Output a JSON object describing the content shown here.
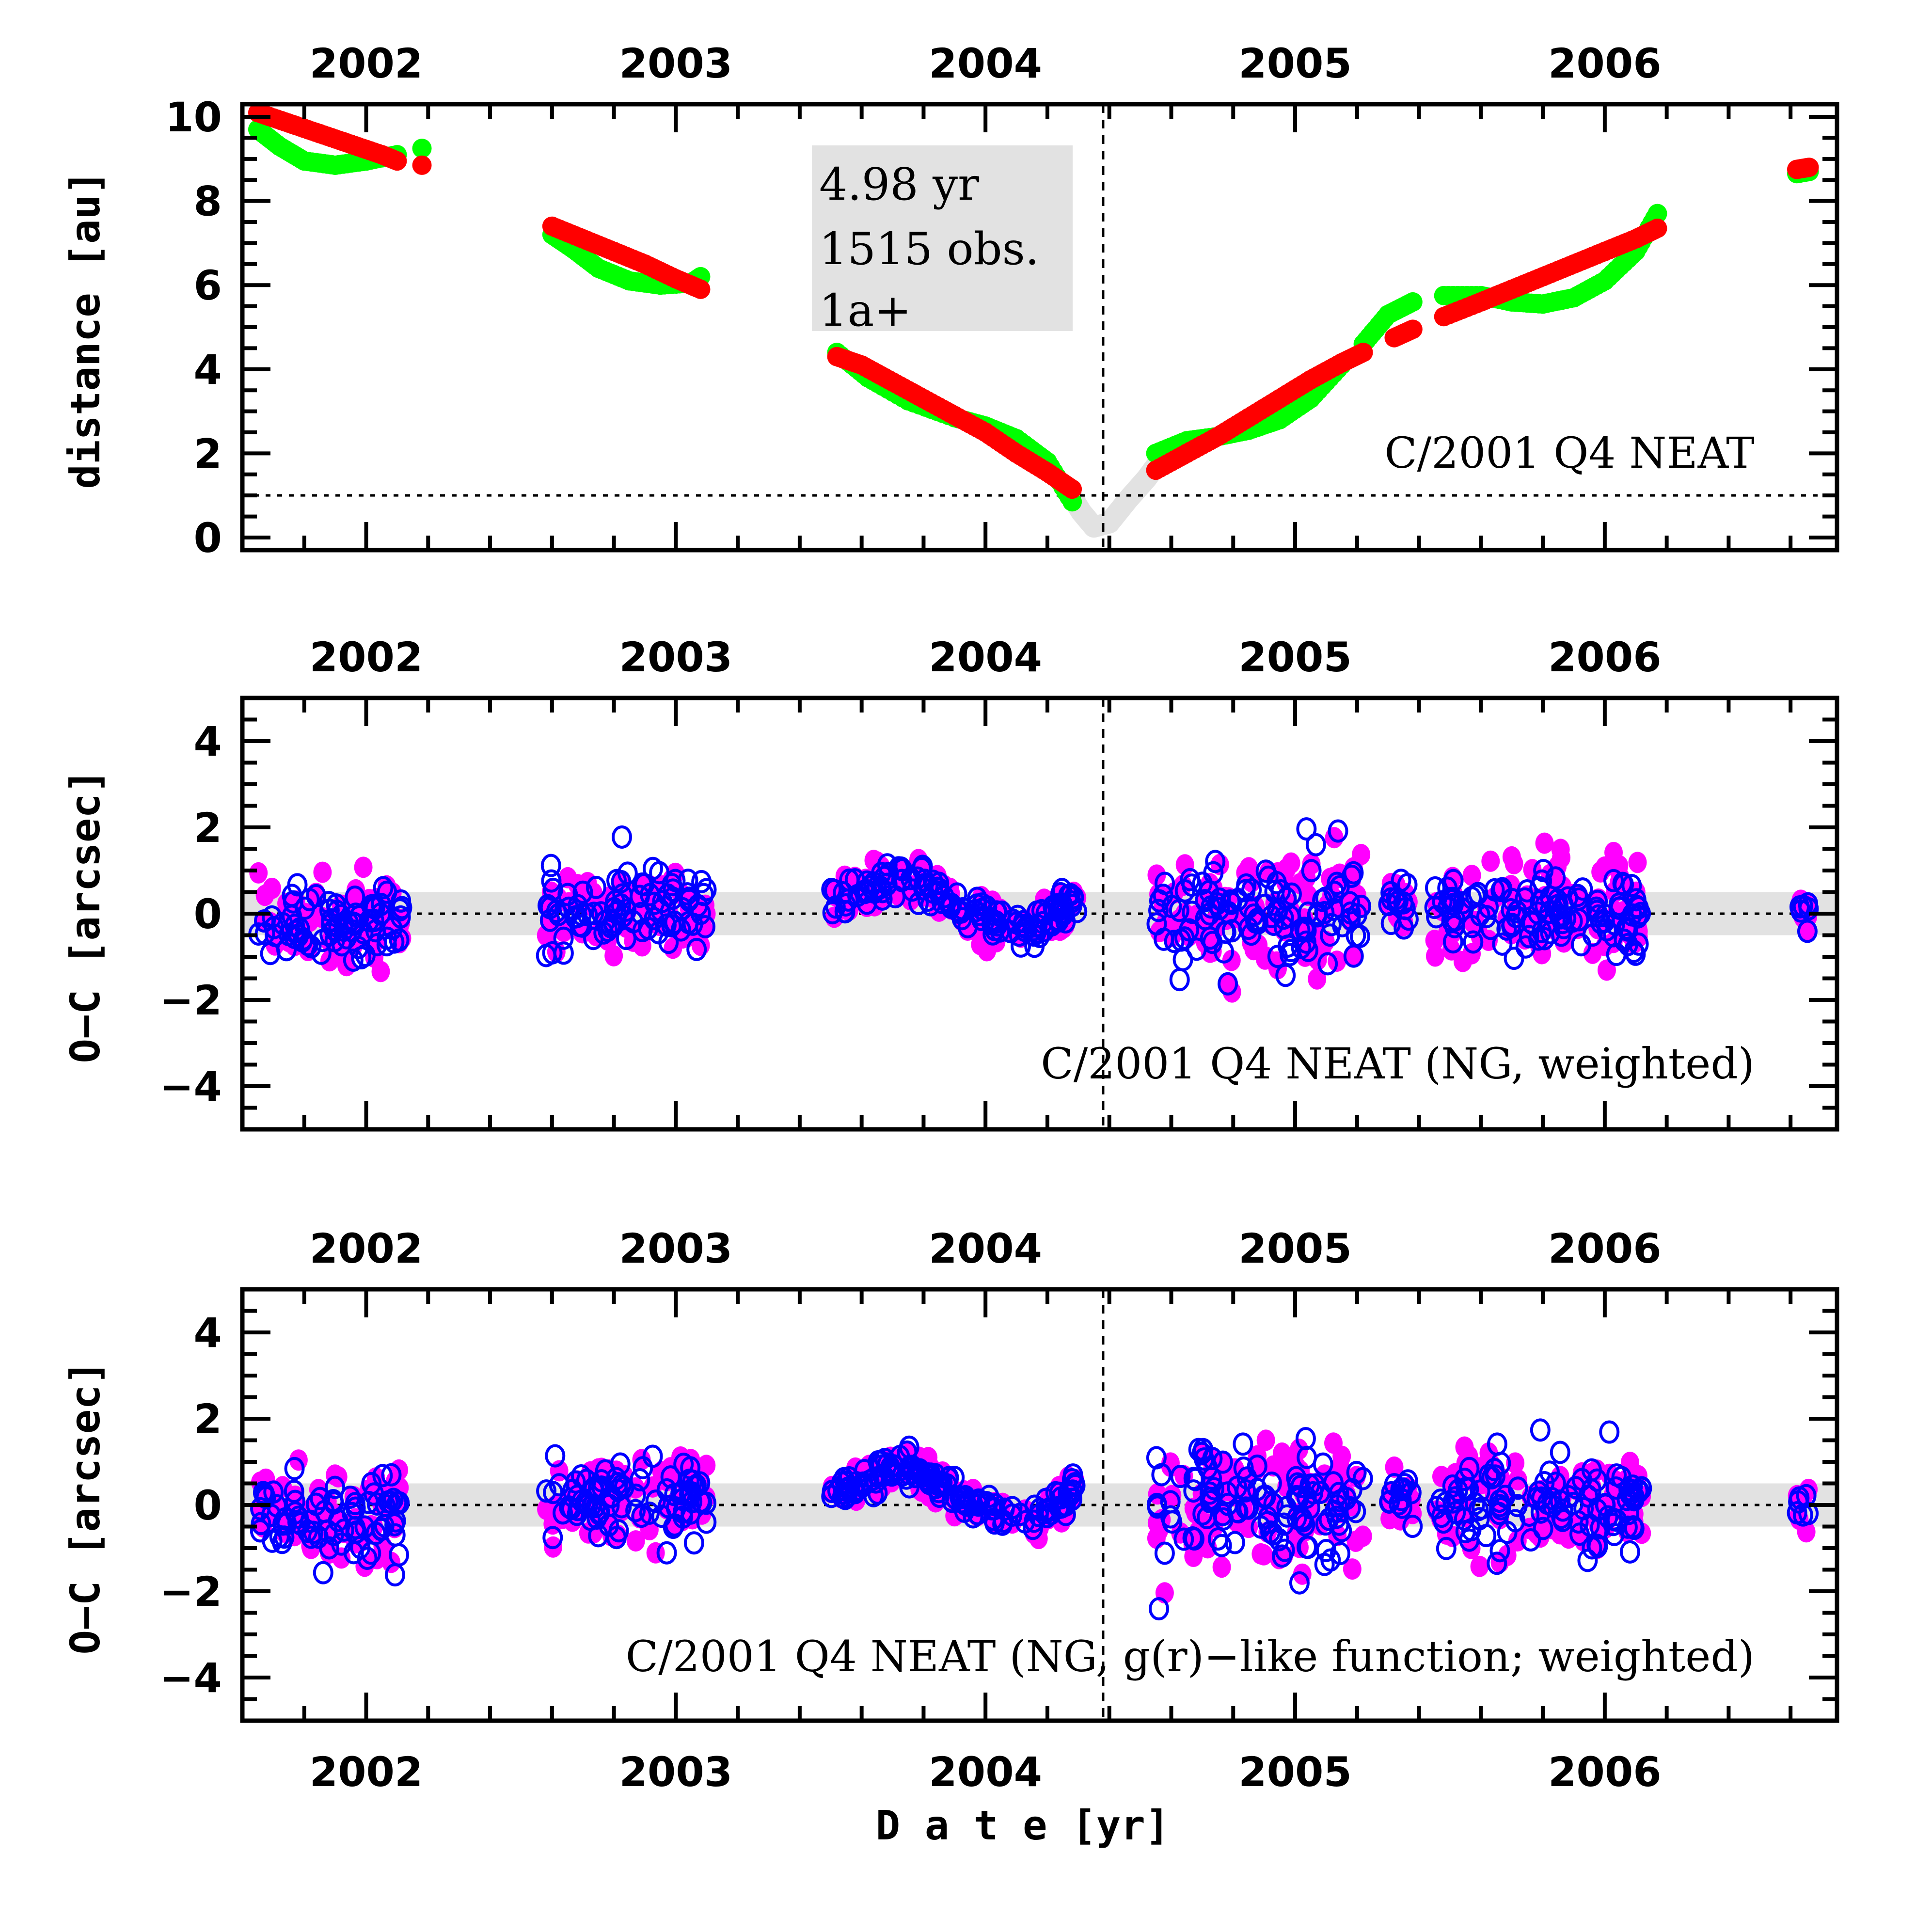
{
  "chart_data": [
    {
      "type": "scatter",
      "panel": "distance",
      "title": "",
      "xlabel": "",
      "ylabel": "distance [au]",
      "xlim": [
        2001.6,
        2006.75
      ],
      "ylim": [
        -0.3,
        10.3
      ],
      "x_tick_labels_top": [
        "2002",
        "2003",
        "2004",
        "2005",
        "2006"
      ],
      "x_ticks": [
        2002,
        2003,
        2004,
        2005,
        2006
      ],
      "y_ticks": [
        0,
        2,
        4,
        6,
        8,
        10
      ],
      "y_tick_labels": [
        "0",
        "2",
        "4",
        "6",
        "8",
        "10"
      ],
      "reference_hline": 1.0,
      "perihelion_vline": 2004.38,
      "annotation": "C/2001 Q4 NEAT",
      "info_box": [
        "4.98 yr",
        "1515 obs.",
        "1a+"
      ],
      "colors": {
        "heliocentric": "#ff0000",
        "geocentric": "#00ff00",
        "gap": "#e2e2e2"
      },
      "series": [
        {
          "name": "heliocentric distance (observed arcs)",
          "color": "#ff0000",
          "arcs": [
            {
              "x": [
                2001.65,
                2001.75,
                2001.85,
                2001.95,
                2002.05,
                2002.1
              ],
              "y": [
                10.1,
                9.85,
                9.6,
                9.35,
                9.1,
                8.95
              ]
            },
            {
              "x": [
                2002.18
              ],
              "y": [
                8.85
              ]
            },
            {
              "x": [
                2002.6,
                2002.7,
                2002.8,
                2002.9,
                2003.0,
                2003.08
              ],
              "y": [
                7.4,
                7.1,
                6.8,
                6.5,
                6.15,
                5.9
              ]
            },
            {
              "x": [
                2003.52,
                2003.6,
                2003.7,
                2003.8,
                2003.9,
                2004.0,
                2004.1,
                2004.2,
                2004.28
              ],
              "y": [
                4.3,
                4.1,
                3.7,
                3.3,
                2.9,
                2.5,
                2.0,
                1.55,
                1.15
              ]
            },
            {
              "x": [
                2004.55,
                2004.65,
                2004.75,
                2004.85,
                2004.95,
                2005.05,
                2005.15,
                2005.22
              ],
              "y": [
                1.6,
                2.0,
                2.4,
                2.85,
                3.3,
                3.75,
                4.15,
                4.4
              ]
            },
            {
              "x": [
                2005.32,
                2005.38
              ],
              "y": [
                4.75,
                4.95
              ]
            },
            {
              "x": [
                2005.48,
                2005.6,
                2005.7,
                2005.8,
                2005.9,
                2006.0,
                2006.1,
                2006.17
              ],
              "y": [
                5.25,
                5.6,
                5.9,
                6.2,
                6.5,
                6.8,
                7.1,
                7.35
              ]
            },
            {
              "x": [
                2006.62,
                2006.66
              ],
              "y": [
                8.75,
                8.8
              ]
            }
          ]
        },
        {
          "name": "geocentric distance (observed arcs)",
          "color": "#00ff00",
          "arcs": [
            {
              "x": [
                2001.65,
                2001.72,
                2001.8,
                2001.9,
                2002.0,
                2002.1
              ],
              "y": [
                9.7,
                9.3,
                8.95,
                8.85,
                8.95,
                9.1
              ]
            },
            {
              "x": [
                2002.18
              ],
              "y": [
                9.25
              ]
            },
            {
              "x": [
                2002.6,
                2002.67,
                2002.75,
                2002.85,
                2002.95,
                2003.05,
                2003.08
              ],
              "y": [
                7.2,
                6.85,
                6.4,
                6.1,
                6.0,
                6.05,
                6.2
              ]
            },
            {
              "x": [
                2003.52,
                2003.62,
                2003.75,
                2003.9,
                2004.0,
                2004.1,
                2004.2,
                2004.28
              ],
              "y": [
                4.4,
                3.8,
                3.25,
                2.85,
                2.65,
                2.35,
                1.8,
                0.85
              ]
            },
            {
              "x": [
                2004.55,
                2004.65,
                2004.75,
                2004.85,
                2004.95,
                2005.05,
                2005.15
              ],
              "y": [
                2.0,
                2.3,
                2.4,
                2.55,
                2.8,
                3.3,
                4.1
              ]
            },
            {
              "x": [
                2005.22,
                2005.3,
                2005.38
              ],
              "y": [
                4.6,
                5.3,
                5.6
              ]
            },
            {
              "x": [
                2005.48,
                2005.6,
                2005.7,
                2005.8,
                2005.9,
                2006.0,
                2006.1,
                2006.17
              ],
              "y": [
                5.75,
                5.75,
                5.6,
                5.55,
                5.7,
                6.1,
                6.8,
                7.7
              ]
            },
            {
              "x": [
                2006.62,
                2006.66
              ],
              "y": [
                8.65,
                8.7
              ]
            }
          ]
        }
      ]
    },
    {
      "type": "scatter",
      "panel": "residuals-ng-weighted",
      "xlabel": "",
      "ylabel": "O−C [arcsec]",
      "xlim": [
        2001.6,
        2006.75
      ],
      "ylim": [
        -5,
        5
      ],
      "x_tick_labels_top": [
        "2002",
        "2003",
        "2004",
        "2005",
        "2006"
      ],
      "y_ticks": [
        -4,
        -2,
        0,
        2,
        4
      ],
      "y_tick_labels": [
        "−4",
        "−2",
        "0",
        "2",
        "4"
      ],
      "band": [
        -0.5,
        0.5
      ],
      "perihelion_vline": 2004.38,
      "annotation": "C/2001 Q4 NEAT (NG, weighted)",
      "series": [
        {
          "name": "RA residuals",
          "marker": "filled-circle",
          "color": "#ff00ff"
        },
        {
          "name": "Dec residuals",
          "marker": "open-circle",
          "color": "#0000ff"
        }
      ],
      "clusters": [
        {
          "x_range": [
            2001.65,
            2002.12
          ],
          "mean": -0.2,
          "spread": 1.2
        },
        {
          "x_range": [
            2002.58,
            2003.1
          ],
          "mean": 0.1,
          "spread": 1.1
        },
        {
          "x_range": [
            2003.5,
            2004.3
          ],
          "trend": [
            [
              2003.5,
              0.3
            ],
            [
              2003.75,
              0.9
            ],
            [
              2003.95,
              0.0
            ],
            [
              2004.15,
              -0.4
            ],
            [
              2004.3,
              0.4
            ]
          ],
          "spread": 0.5
        },
        {
          "x_range": [
            2004.55,
            2005.22
          ],
          "mean": 0.0,
          "spread": 1.6
        },
        {
          "x_range": [
            2005.3,
            2005.38
          ],
          "mean": 0.2,
          "spread": 0.8
        },
        {
          "x_range": [
            2005.45,
            2006.12
          ],
          "mean": 0.0,
          "spread": 1.3
        },
        {
          "x_range": [
            2006.62,
            2006.66
          ],
          "mean": 0.1,
          "spread": 0.6
        }
      ]
    },
    {
      "type": "scatter",
      "panel": "residuals-ng-gr-like-weighted",
      "xlabel": "D a t e [yr]",
      "ylabel": "O−C [arcsec]",
      "xlim": [
        2001.6,
        2006.75
      ],
      "ylim": [
        -5,
        5
      ],
      "x_tick_labels_top": [
        "2002",
        "2003",
        "2004",
        "2005",
        "2006"
      ],
      "x_tick_labels_bottom": [
        "2002",
        "2003",
        "2004",
        "2005",
        "2006"
      ],
      "y_ticks": [
        -4,
        -2,
        0,
        2,
        4
      ],
      "y_tick_labels": [
        "−4",
        "−2",
        "0",
        "2",
        "4"
      ],
      "band": [
        -0.5,
        0.5
      ],
      "perihelion_vline": 2004.38,
      "annotation": "C/2001 Q4 NEAT (NG, g(r)−like function; weighted)",
      "series": [
        {
          "name": "RA residuals",
          "marker": "filled-circle",
          "color": "#ff00ff"
        },
        {
          "name": "Dec residuals",
          "marker": "open-circle",
          "color": "#0000ff"
        }
      ],
      "clusters": [
        {
          "x_range": [
            2001.65,
            2002.12
          ],
          "mean": -0.2,
          "spread": 1.2
        },
        {
          "x_range": [
            2002.58,
            2003.1
          ],
          "mean": 0.1,
          "spread": 1.1
        },
        {
          "x_range": [
            2003.5,
            2004.3
          ],
          "trend": [
            [
              2003.5,
              0.3
            ],
            [
              2003.75,
              0.9
            ],
            [
              2003.95,
              0.0
            ],
            [
              2004.15,
              -0.4
            ],
            [
              2004.3,
              0.5
            ]
          ],
          "spread": 0.5
        },
        {
          "x_range": [
            2004.55,
            2005.22
          ],
          "mean": 0.0,
          "spread": 1.6
        },
        {
          "x_range": [
            2005.3,
            2005.38
          ],
          "mean": 0.2,
          "spread": 0.8
        },
        {
          "x_range": [
            2005.45,
            2006.12
          ],
          "mean": 0.0,
          "spread": 1.3
        },
        {
          "x_range": [
            2006.62,
            2006.66
          ],
          "mean": 0.1,
          "spread": 0.6
        }
      ]
    }
  ]
}
